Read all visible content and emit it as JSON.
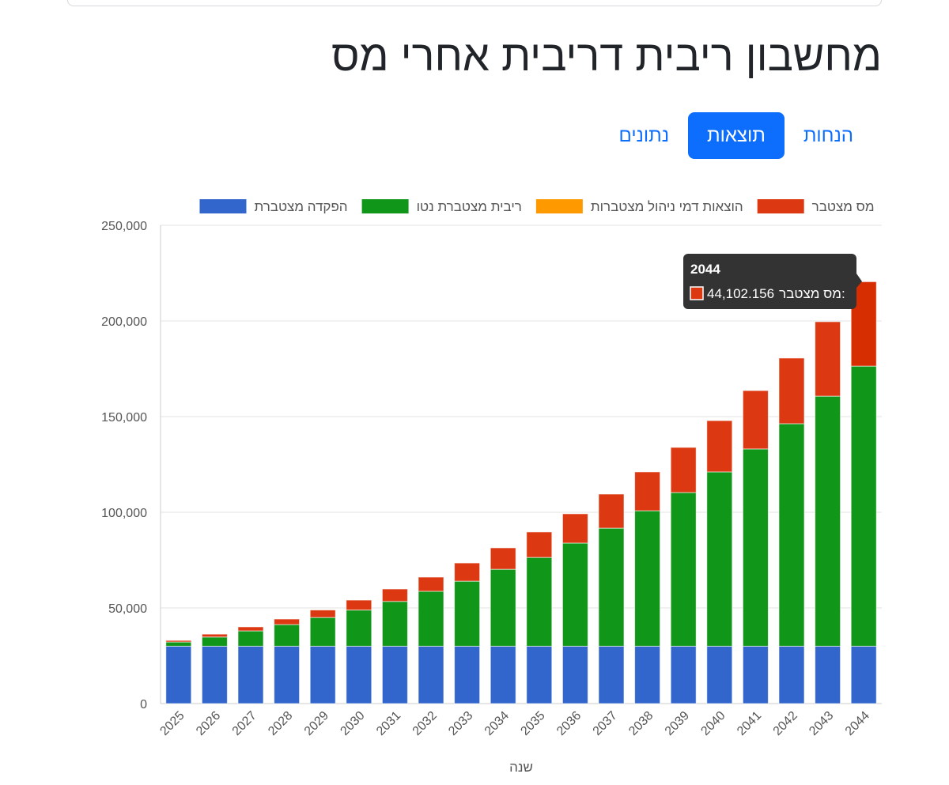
{
  "page": {
    "title": "מחשבון ריבית דריבית אחרי מס",
    "tabs": [
      {
        "label": "נתונים",
        "active": false
      },
      {
        "label": "תוצאות",
        "active": true
      },
      {
        "label": "הנחות",
        "active": false
      }
    ]
  },
  "colors": {
    "deposit": "#3366cc",
    "interest": "#109618",
    "fees": "#ff9900",
    "tax": "#dc3912",
    "tax_highlight": "#d62e00"
  },
  "tooltip": {
    "title": "2044",
    "label": "מס מצטבר:",
    "value": "44,102.156"
  },
  "chart_data": {
    "type": "bar",
    "stacked": true,
    "title": "",
    "xlabel": "שנה",
    "ylabel": "",
    "ylim": [
      0,
      250000
    ],
    "yticks": [
      0,
      50000,
      100000,
      150000,
      200000,
      250000
    ],
    "ytick_labels": [
      "0",
      "50,000",
      "100,000",
      "150,000",
      "200,000",
      "250,000"
    ],
    "grid": true,
    "legend_position": "top",
    "categories": [
      "2025",
      "2026",
      "2027",
      "2028",
      "2029",
      "2030",
      "2031",
      "2032",
      "2033",
      "2034",
      "2035",
      "2036",
      "2037",
      "2038",
      "2039",
      "2040",
      "2041",
      "2042",
      "2043",
      "2044"
    ],
    "series": [
      {
        "name": "הפקדה מצטברת",
        "color_key": "deposit",
        "values": [
          30000,
          30000,
          30000,
          30000,
          30000,
          30000,
          30000,
          30000,
          30000,
          30000,
          30000,
          30000,
          30000,
          30000,
          30000,
          30000,
          30000,
          30000,
          30000,
          30000
        ]
      },
      {
        "name": "ריבית מצטברת נטו",
        "color_key": "interest",
        "values": [
          2200,
          4800,
          8000,
          11300,
          15000,
          18900,
          23400,
          28700,
          34000,
          40200,
          46400,
          53900,
          61700,
          70800,
          80300,
          91100,
          103100,
          116300,
          130700,
          146400
        ]
      },
      {
        "name": "הוצאות דמי ניהול מצטברות",
        "color_key": "fees",
        "values": [
          0,
          0,
          0,
          0,
          0,
          0,
          0,
          0,
          0,
          0,
          0,
          0,
          0,
          0,
          0,
          0,
          0,
          0,
          0,
          0
        ]
      },
      {
        "name": "מס מצטבר",
        "color_key": "tax",
        "values": [
          800,
          1500,
          2100,
          2900,
          3900,
          5200,
          6500,
          7400,
          9500,
          11200,
          13300,
          15300,
          17800,
          20300,
          23600,
          26800,
          30500,
          34300,
          38900,
          44102.156
        ]
      }
    ]
  }
}
